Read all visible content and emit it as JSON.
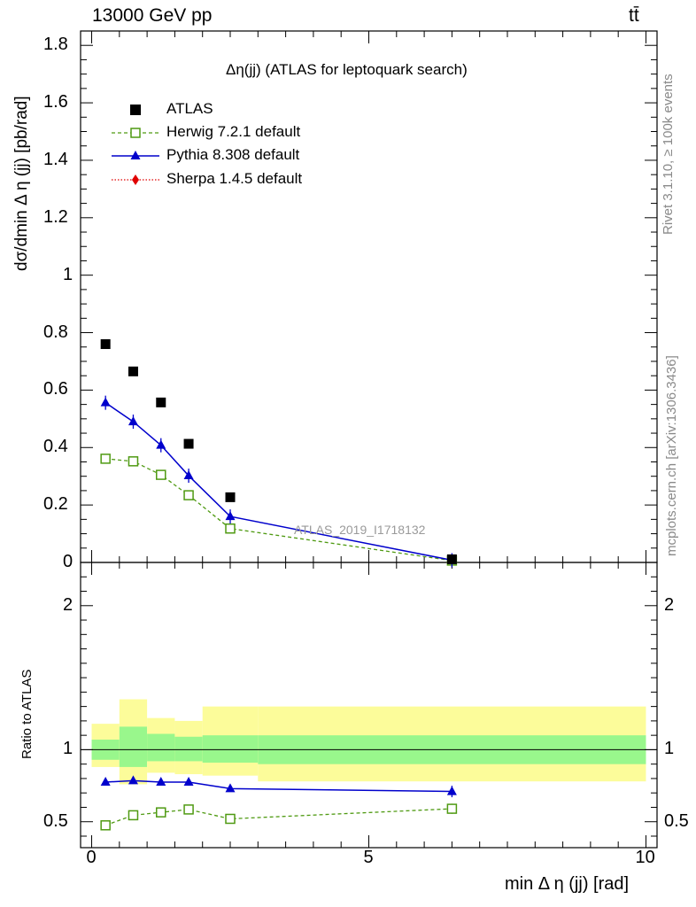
{
  "header": {
    "energy_label": "13000 GeV pp",
    "process_label": "tt̄"
  },
  "side_labels": {
    "rivet": "Rivet 3.1.10, ≥ 100k events",
    "mcplots": "mcplots.cern.ch [arXiv:1306.3436]"
  },
  "chart_data": {
    "type": "scatter",
    "title": "Δη(jj) (ATLAS for leptoquark search)",
    "watermark": "ATLAS_2019_I1718132",
    "xlabel": "min Δ η (jj) [rad]",
    "ylabel": "dσ/dmin Δ η (jj) [pb/rad]",
    "ratio_ylabel": "Ratio to ATLAS",
    "xlim": [
      -0.2,
      10.2
    ],
    "ylim": [
      0,
      1.85
    ],
    "ratio_ylim": [
      0.32,
      2.3
    ],
    "x_ticks": [
      0,
      5,
      10
    ],
    "y_ticks": [
      0,
      0.2,
      0.4,
      0.6,
      0.8,
      1,
      1.2,
      1.4,
      1.6,
      1.8
    ],
    "y_tick_labels": [
      "0",
      "0.2",
      "0.4",
      "0.6",
      "0.8",
      "1",
      "1.2",
      "1.4",
      "1.6",
      "1.8"
    ],
    "ratio_y_ticks": [
      0.5,
      1,
      2
    ],
    "ratio_y_tick_labels": [
      "0.5",
      "1",
      "2"
    ],
    "x_tick_labels": [
      "0",
      "5",
      "10"
    ],
    "bins": [
      [
        0,
        0.5
      ],
      [
        0.5,
        1.0
      ],
      [
        1.0,
        1.5
      ],
      [
        1.5,
        2.0
      ],
      [
        2.0,
        3.0
      ],
      [
        3.0,
        10.0
      ]
    ],
    "x": [
      0.25,
      0.75,
      1.25,
      1.75,
      2.5,
      6.5
    ],
    "legend": [
      "ATLAS",
      "Herwig 7.2.1 default",
      "Pythia 8.308 default",
      "Sherpa 1.4.5 default"
    ],
    "series": [
      {
        "name": "ATLAS",
        "color": "#000000",
        "values": [
          0.76,
          0.665,
          0.557,
          0.413,
          0.227,
          0.011
        ]
      },
      {
        "name": "Herwig 7.2.1 default",
        "color": "#4f9a12",
        "values": [
          0.361,
          0.352,
          0.305,
          0.234,
          0.118,
          0.0065
        ],
        "ratio": [
          0.475,
          0.545,
          0.565,
          0.585,
          0.52,
          0.59
        ],
        "ratio_err": [
          0.0,
          0.012,
          0.012,
          0.018,
          0.012,
          0.035
        ]
      },
      {
        "name": "Pythia 8.308 default",
        "color": "#0000cc",
        "values": [
          0.556,
          0.49,
          0.408,
          0.302,
          0.16,
          0.0078
        ],
        "ratio": [
          0.775,
          0.785,
          0.775,
          0.775,
          0.73,
          0.71
        ],
        "ratio_err": [
          0.018,
          0.018,
          0.018,
          0.025,
          0.018,
          0.04
        ]
      },
      {
        "name": "Sherpa 1.4.5 default",
        "color": "#e00000",
        "values": []
      }
    ],
    "ratio_bands": {
      "stat_color": "#99f78c",
      "total_color": "#fcfc9a",
      "stat_low": [
        0.93,
        0.88,
        0.92,
        0.92,
        0.91,
        0.9
      ],
      "stat_high": [
        1.07,
        1.16,
        1.11,
        1.09,
        1.1,
        1.1
      ],
      "total_low": [
        0.88,
        0.76,
        0.84,
        0.83,
        0.82,
        0.78
      ],
      "total_high": [
        1.18,
        1.35,
        1.22,
        1.2,
        1.3,
        1.3
      ]
    }
  }
}
